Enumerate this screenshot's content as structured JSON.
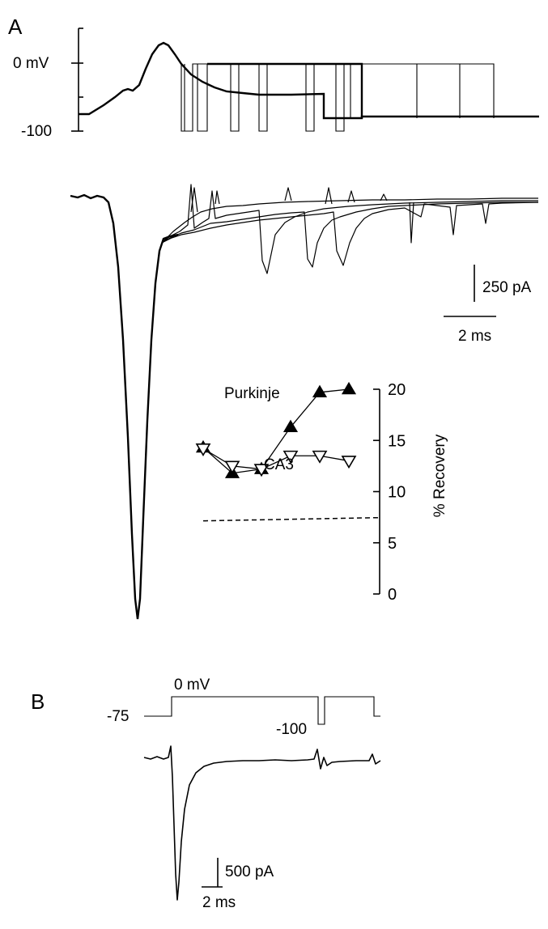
{
  "panels": {
    "a": "A",
    "b": "B"
  },
  "panel_a": {
    "voltage_ticks": [
      "0 mV",
      "-100"
    ],
    "current_scale": "250 pA",
    "time_scale": "2 ms"
  },
  "panel_b": {
    "levels": {
      "top": "0 mV",
      "hold": "-75",
      "step": "-100"
    },
    "current_scale": "500 pA",
    "time_scale": "2 ms"
  },
  "chart_data": {
    "type": "scatter",
    "ylabel": "% Recovery",
    "ylim": [
      0,
      20
    ],
    "yticks": [
      0,
      5,
      10,
      15,
      20
    ],
    "xlabel": "",
    "series": [
      {
        "name": "Purkinje",
        "marker": "filled-triangle-up",
        "x": [
          1,
          2,
          3,
          4,
          5,
          6
        ],
        "y": [
          14.3,
          11.8,
          12.2,
          16.3,
          19.7,
          20.0
        ]
      },
      {
        "name": "CA3",
        "marker": "open-triangle-down",
        "x": [
          1,
          2,
          3,
          4,
          5,
          6
        ],
        "y": [
          14.2,
          12.5,
          12.2,
          13.5,
          13.5,
          13.0
        ]
      }
    ],
    "reference_line": {
      "style": "dashed",
      "y": 7.3
    },
    "annotations": [
      "Purkinje",
      "CA3"
    ]
  }
}
